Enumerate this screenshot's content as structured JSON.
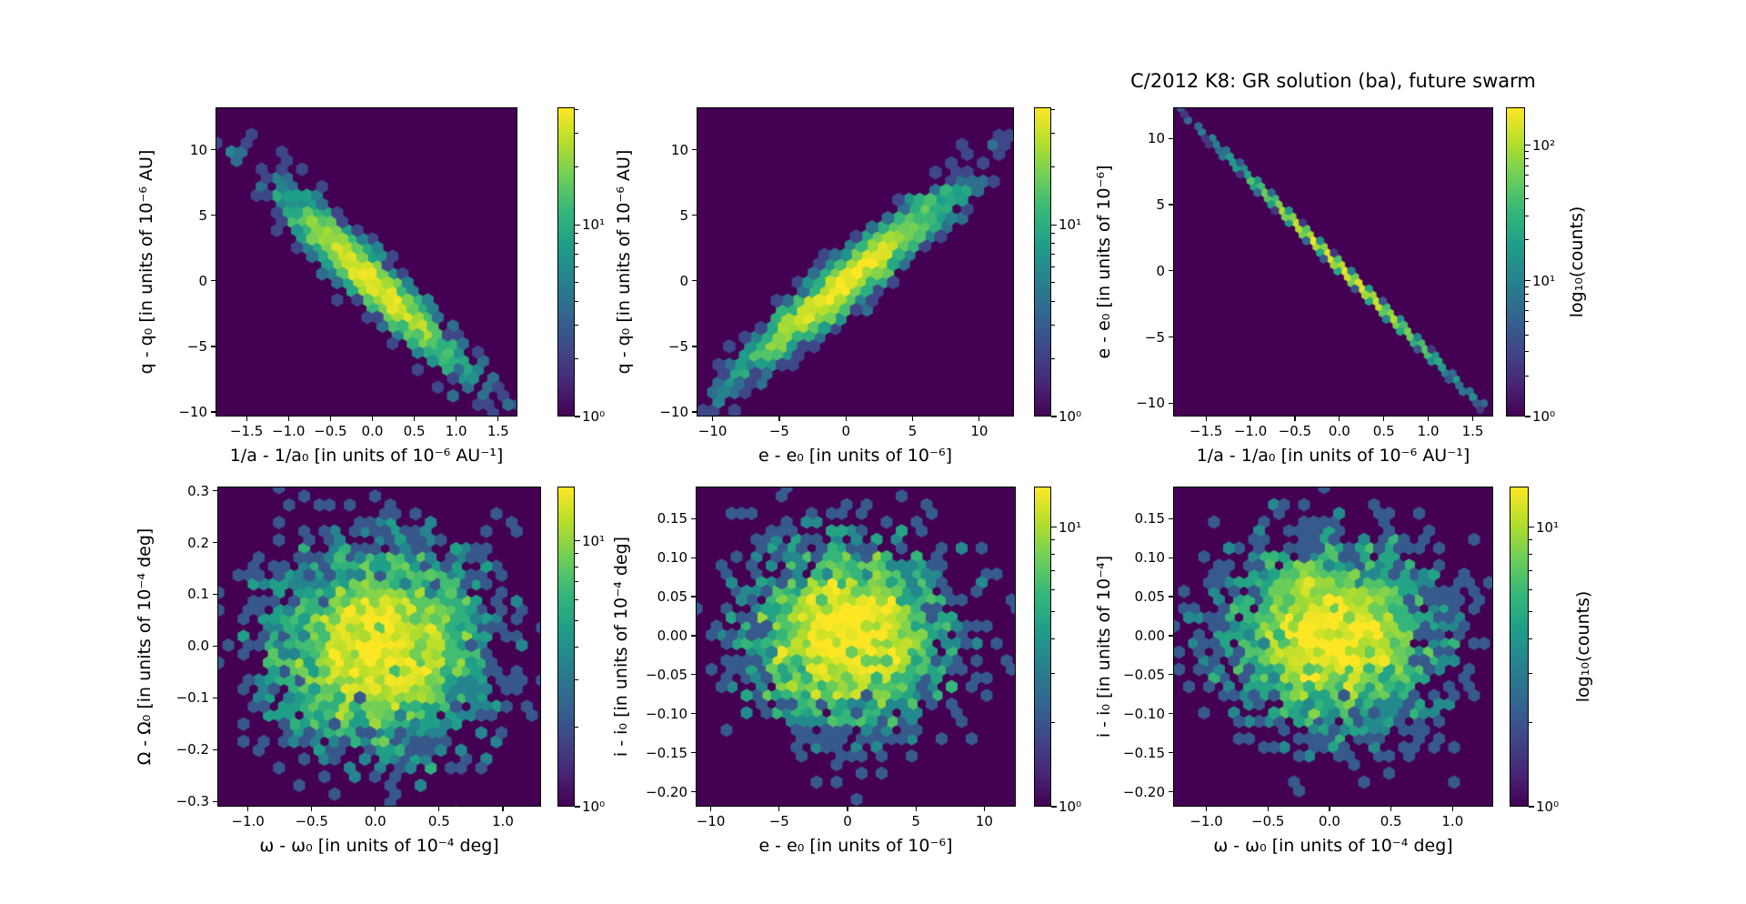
{
  "figure_title": "C/2012 K8: GR solution (ba), future swarm",
  "colormap": {
    "name": "viridis",
    "stops": [
      "#440154",
      "#482878",
      "#3e4989",
      "#31688e",
      "#26828e",
      "#1f9e89",
      "#35b779",
      "#6ece58",
      "#b5de2b",
      "#fde725"
    ],
    "background_hex": "#440154"
  },
  "chart_data": [
    {
      "id": "inv-a-vs-q",
      "type": "hexbin",
      "xlabel": "1/a - 1/a₀ [in units of 10⁻⁶ AU⁻¹]",
      "ylabel": "q - q₀ [in units of 10⁻⁶ AU]",
      "xlim": [
        -1.87,
        1.73
      ],
      "ylim": [
        -10.35,
        13.25
      ],
      "xtick_values": [
        -1.5,
        -1.0,
        -0.5,
        0.0,
        0.5,
        1.0,
        1.5
      ],
      "xtick_labels": [
        "−1.5",
        "−1.0",
        "−0.5",
        "0.0",
        "0.5",
        "1.0",
        "1.5"
      ],
      "ytick_values": [
        -10,
        -5,
        0,
        5,
        10
      ],
      "ytick_labels": [
        "−10",
        "−5",
        "0",
        "5",
        "10"
      ],
      "distribution": {
        "shape": "gaussian",
        "center": [
          0,
          0
        ],
        "sigma_x": 0.52,
        "sigma_y": 3.3,
        "corr": -0.95,
        "n_points": 1750
      },
      "colorbar": {
        "max_count": 41,
        "ticks": [
          {
            "value": 10,
            "label": "10¹"
          },
          {
            "value": 1,
            "label": "10⁰"
          }
        ]
      }
    },
    {
      "id": "e-vs-q",
      "type": "hexbin",
      "xlabel": "e - e₀ [in units of 10⁻⁶]",
      "ylabel": "q - q₀ [in units of 10⁻⁶ AU]",
      "xlim": [
        -11.2,
        12.6
      ],
      "ylim": [
        -10.35,
        13.25
      ],
      "xtick_values": [
        -10,
        -5,
        0,
        5,
        10
      ],
      "xtick_labels": [
        "−10",
        "−5",
        "0",
        "5",
        "10"
      ],
      "ytick_values": [
        -10,
        -5,
        0,
        5,
        10
      ],
      "ytick_labels": [
        "−10",
        "−5",
        "0",
        "5",
        "10"
      ],
      "distribution": {
        "shape": "gaussian",
        "center": [
          0,
          0
        ],
        "sigma_x": 3.8,
        "sigma_y": 3.3,
        "corr": 0.95,
        "n_points": 1900
      },
      "colorbar": {
        "max_count": 41,
        "ticks": [
          {
            "value": 10,
            "label": "10¹"
          },
          {
            "value": 1,
            "label": "10⁰"
          }
        ]
      }
    },
    {
      "id": "inv-a-vs-e",
      "type": "hexbin",
      "xlabel": "1/a - 1/a₀ [in units of 10⁻⁶ AU⁻¹]",
      "ylabel": "e - e₀ [in units of 10⁻⁶]",
      "xlim": [
        -1.87,
        1.73
      ],
      "ylim": [
        -11.0,
        12.35
      ],
      "xtick_values": [
        -1.5,
        -1.0,
        -0.5,
        0.0,
        0.5,
        1.0,
        1.5
      ],
      "xtick_labels": [
        "−1.5",
        "−1.0",
        "−0.5",
        "0.0",
        "0.5",
        "1.0",
        "1.5"
      ],
      "ytick_values": [
        -10,
        -5,
        0,
        5,
        10
      ],
      "ytick_labels": [
        "−10",
        "−5",
        "0",
        "5",
        "10"
      ],
      "distribution": {
        "shape": "line",
        "slope": -6.6,
        "intercept": 0.35,
        "sigma_x": 0.55,
        "noise_y": 0.08,
        "n_points": 3500
      },
      "colorbar": {
        "max_count": 190,
        "label": "log₁₀(counts)",
        "ticks": [
          {
            "value": 100,
            "label": "10²"
          },
          {
            "value": 10,
            "label": "10¹"
          },
          {
            "value": 1,
            "label": "10⁰"
          }
        ]
      }
    },
    {
      "id": "omega-vs-Omega",
      "type": "hexbin",
      "xlabel": "ω - ω₀ [in units of 10⁻⁴ deg]",
      "ylabel": "Ω - Ω₀ [in units of 10⁻⁴ deg]",
      "xlim": [
        -1.24,
        1.3
      ],
      "ylim": [
        -0.31,
        0.308
      ],
      "xtick_values": [
        -1.0,
        -0.5,
        0.0,
        0.5,
        1.0
      ],
      "xtick_labels": [
        "−1.0",
        "−0.5",
        "0.0",
        "0.5",
        "1.0"
      ],
      "ytick_values": [
        -0.3,
        -0.2,
        -0.1,
        0.0,
        0.1,
        0.2,
        0.3
      ],
      "ytick_labels": [
        "−0.3",
        "−0.2",
        "−0.1",
        "0.0",
        "0.1",
        "0.2",
        "0.3"
      ],
      "distribution": {
        "shape": "gaussian",
        "center": [
          0,
          0
        ],
        "sigma_x": 0.42,
        "sigma_y": 0.095,
        "corr": 0.0,
        "n_points": 3000
      },
      "colorbar": {
        "max_count": 16,
        "ticks": [
          {
            "value": 10,
            "label": "10¹"
          },
          {
            "value": 1,
            "label": "10⁰"
          }
        ]
      }
    },
    {
      "id": "e-vs-i",
      "type": "hexbin",
      "xlabel": "e - e₀ [in units of 10⁻⁶]",
      "ylabel": "i - i₀ [in units of 10⁻⁴ deg]",
      "xlim": [
        -11.1,
        12.3
      ],
      "ylim": [
        -0.219,
        0.191
      ],
      "xtick_values": [
        -10,
        -5,
        0,
        5,
        10
      ],
      "xtick_labels": [
        "−10",
        "−5",
        "0",
        "5",
        "10"
      ],
      "ytick_values": [
        -0.2,
        -0.15,
        -0.1,
        -0.05,
        0.0,
        0.05,
        0.1,
        0.15
      ],
      "ytick_labels": [
        "−0.20",
        "−0.15",
        "−0.10",
        "−0.05",
        "0.00",
        "0.05",
        "0.10",
        "0.15"
      ],
      "distribution": {
        "shape": "gaussian",
        "center": [
          0,
          0
        ],
        "sigma_x": 3.6,
        "sigma_y": 0.058,
        "corr": 0.0,
        "n_points": 2500
      },
      "colorbar": {
        "max_count": 14,
        "ticks": [
          {
            "value": 10,
            "label": "10¹"
          },
          {
            "value": 1,
            "label": "10⁰"
          }
        ]
      }
    },
    {
      "id": "omega-vs-i",
      "type": "hexbin",
      "xlabel": "ω - ω₀ [in units of 10⁻⁴ deg]",
      "ylabel": "i - i₀ [in units of 10⁻⁴]",
      "xlim": [
        -1.27,
        1.33
      ],
      "ylim": [
        -0.219,
        0.191
      ],
      "xtick_values": [
        -1.0,
        -0.5,
        0.0,
        0.5,
        1.0
      ],
      "xtick_labels": [
        "−1.0",
        "−0.5",
        "0.0",
        "0.5",
        "1.0"
      ],
      "ytick_values": [
        -0.2,
        -0.15,
        -0.1,
        -0.05,
        0.0,
        0.05,
        0.1,
        0.15
      ],
      "ytick_labels": [
        "−0.20",
        "−0.15",
        "−0.10",
        "−0.05",
        "0.00",
        "0.05",
        "0.10",
        "0.15"
      ],
      "distribution": {
        "shape": "gaussian",
        "center": [
          0,
          0
        ],
        "sigma_x": 0.42,
        "sigma_y": 0.058,
        "corr": 0.0,
        "n_points": 2500
      },
      "colorbar": {
        "max_count": 14,
        "label": "log₁₀(counts)",
        "ticks": [
          {
            "value": 10,
            "label": "10¹"
          },
          {
            "value": 1,
            "label": "10⁰"
          }
        ]
      }
    }
  ]
}
